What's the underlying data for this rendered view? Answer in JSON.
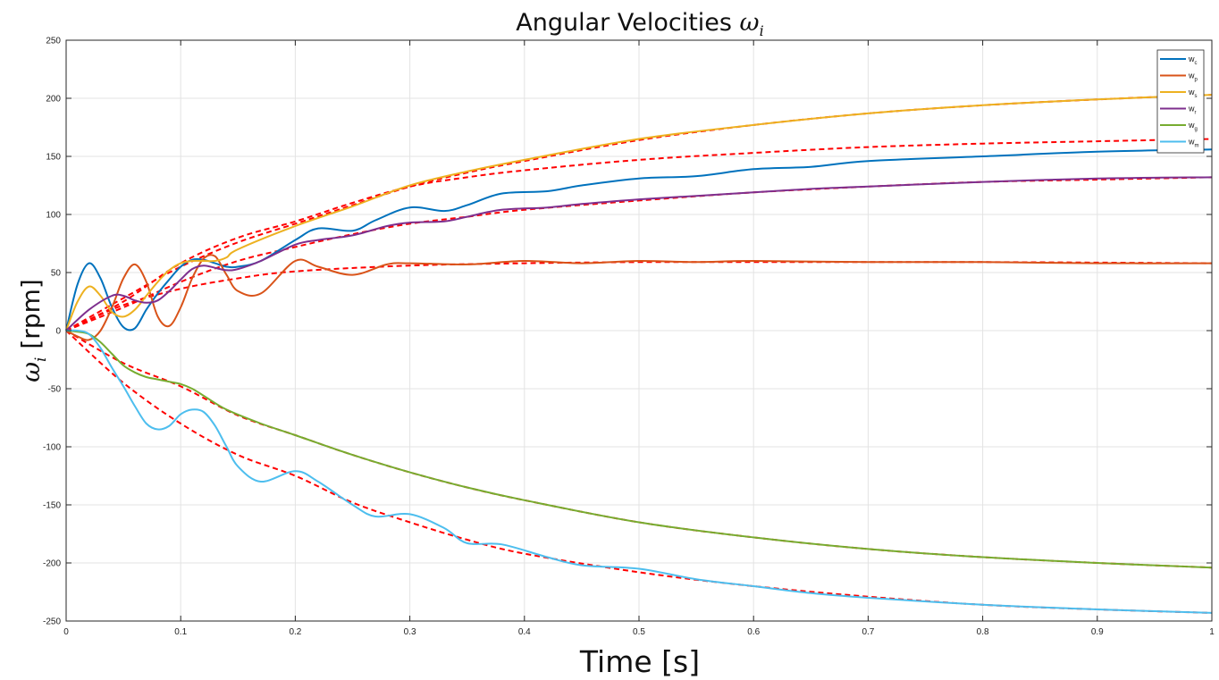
{
  "chart_data": {
    "type": "line",
    "title": "Angular Velocities ",
    "title_symbol": "ω",
    "title_subscript": "i",
    "xlabel": "Time [s]",
    "ylabel_symbol": "ω",
    "ylabel_subscript": "i",
    "ylabel_unit": " [rpm]",
    "xlim": [
      0,
      1
    ],
    "ylim": [
      -250,
      250
    ],
    "xticks": [
      0,
      0.1,
      0.2,
      0.3,
      0.4,
      0.5,
      0.6,
      0.7,
      0.8,
      0.9,
      1
    ],
    "xtick_labels": [
      "0",
      "0.1",
      "0.2",
      "0.3",
      "0.4",
      "0.5",
      "0.6",
      "0.7",
      "0.8",
      "0.9",
      "1"
    ],
    "yticks": [
      -250,
      -200,
      -150,
      -100,
      -50,
      0,
      50,
      100,
      150,
      200,
      250
    ],
    "ytick_labels": [
      "-250",
      "-200",
      "-150",
      "-100",
      "-50",
      "0",
      "50",
      "100",
      "150",
      "200",
      "250"
    ],
    "grid": true,
    "legend_position": "top-right",
    "reference_style": {
      "color": "#ff0000",
      "dash": "dashed"
    },
    "series": [
      {
        "name": "w",
        "sub": "c",
        "color": "#0072BD",
        "x": [
          0,
          0.01,
          0.02,
          0.03,
          0.04,
          0.05,
          0.06,
          0.07,
          0.08,
          0.09,
          0.1,
          0.11,
          0.12,
          0.13,
          0.14,
          0.15,
          0.17,
          0.2,
          0.22,
          0.25,
          0.27,
          0.3,
          0.33,
          0.35,
          0.38,
          0.42,
          0.45,
          0.5,
          0.55,
          0.6,
          0.65,
          0.7,
          0.8,
          0.9,
          1.0
        ],
        "values": [
          0,
          40,
          58,
          45,
          20,
          3,
          2,
          18,
          32,
          44,
          55,
          61,
          61,
          58,
          55,
          55,
          60,
          78,
          88,
          86,
          95,
          106,
          103,
          108,
          118,
          120,
          125,
          131,
          133,
          139,
          141,
          146,
          150,
          154,
          156
        ]
      },
      {
        "name": "w",
        "sub": "p",
        "color": "#D95319",
        "x": [
          0,
          0.01,
          0.02,
          0.03,
          0.04,
          0.05,
          0.06,
          0.07,
          0.08,
          0.09,
          0.1,
          0.11,
          0.12,
          0.13,
          0.14,
          0.15,
          0.17,
          0.2,
          0.22,
          0.25,
          0.28,
          0.3,
          0.35,
          0.4,
          0.45,
          0.5,
          0.55,
          0.6,
          0.7,
          0.8,
          0.9,
          1.0
        ],
        "values": [
          0,
          -5,
          -8,
          0,
          20,
          45,
          57,
          42,
          12,
          4,
          20,
          45,
          62,
          64,
          48,
          34,
          32,
          60,
          55,
          48,
          57,
          58,
          57,
          60,
          58,
          60,
          59,
          60,
          59,
          59,
          58,
          58
        ]
      },
      {
        "name": "w",
        "sub": "s",
        "color": "#EDB120",
        "x": [
          0,
          0.01,
          0.02,
          0.03,
          0.04,
          0.05,
          0.06,
          0.07,
          0.08,
          0.09,
          0.1,
          0.11,
          0.12,
          0.13,
          0.14,
          0.15,
          0.2,
          0.25,
          0.3,
          0.35,
          0.4,
          0.5,
          0.6,
          0.7,
          0.8,
          0.9,
          1.0
        ],
        "values": [
          0,
          25,
          38,
          30,
          16,
          12,
          18,
          30,
          42,
          52,
          58,
          60,
          60,
          60,
          63,
          70,
          90,
          107,
          125,
          137,
          147,
          165,
          177,
          187,
          194,
          199,
          203
        ]
      },
      {
        "name": "w",
        "sub": "r",
        "color": "#7E2F8E",
        "x": [
          0,
          0.02,
          0.04,
          0.05,
          0.06,
          0.07,
          0.08,
          0.09,
          0.1,
          0.11,
          0.12,
          0.13,
          0.14,
          0.15,
          0.17,
          0.2,
          0.22,
          0.25,
          0.28,
          0.3,
          0.33,
          0.35,
          0.38,
          0.42,
          0.45,
          0.5,
          0.55,
          0.6,
          0.65,
          0.7,
          0.8,
          0.9,
          1.0
        ],
        "values": [
          0,
          18,
          30,
          30,
          26,
          24,
          26,
          34,
          44,
          53,
          56,
          54,
          52,
          53,
          60,
          74,
          78,
          82,
          90,
          93,
          94,
          98,
          104,
          106,
          109,
          113,
          116,
          119,
          122,
          124,
          128,
          131,
          132
        ]
      },
      {
        "name": "w",
        "sub": "g",
        "color": "#77AC30",
        "x": [
          0,
          0.01,
          0.02,
          0.03,
          0.04,
          0.05,
          0.06,
          0.07,
          0.08,
          0.09,
          0.1,
          0.11,
          0.12,
          0.14,
          0.17,
          0.2,
          0.25,
          0.3,
          0.35,
          0.4,
          0.5,
          0.6,
          0.7,
          0.8,
          0.9,
          1.0
        ],
        "values": [
          0,
          -1,
          -3,
          -10,
          -20,
          -30,
          -36,
          -40,
          -42,
          -44,
          -46,
          -50,
          -56,
          -68,
          -80,
          -90,
          -107,
          -122,
          -135,
          -146,
          -165,
          -178,
          -188,
          -195,
          -200,
          -204
        ]
      },
      {
        "name": "w",
        "sub": "m",
        "color": "#4DBEEE",
        "x": [
          0,
          0.01,
          0.02,
          0.03,
          0.04,
          0.05,
          0.06,
          0.07,
          0.08,
          0.09,
          0.1,
          0.11,
          0.12,
          0.13,
          0.14,
          0.15,
          0.17,
          0.2,
          0.22,
          0.25,
          0.27,
          0.3,
          0.33,
          0.35,
          0.38,
          0.42,
          0.45,
          0.5,
          0.55,
          0.6,
          0.65,
          0.7,
          0.8,
          0.9,
          1.0
        ],
        "values": [
          0,
          0,
          -3,
          -15,
          -32,
          -48,
          -65,
          -80,
          -85,
          -82,
          -72,
          -68,
          -70,
          -82,
          -100,
          -117,
          -130,
          -121,
          -130,
          -150,
          -160,
          -158,
          -170,
          -183,
          -184,
          -195,
          -202,
          -205,
          -214,
          -220,
          -226,
          -230,
          -236,
          -240,
          -243
        ]
      }
    ],
    "references": [
      {
        "x": [
          0,
          0.05,
          0.1,
          0.15,
          0.2,
          0.25,
          0.3,
          0.35,
          0.4,
          0.5,
          0.6,
          0.7,
          0.8,
          0.9,
          1.0
        ],
        "values": [
          0,
          25,
          58,
          80,
          94,
          110,
          124,
          132,
          138,
          147,
          153,
          158,
          161,
          163,
          165
        ]
      },
      {
        "x": [
          0,
          0.05,
          0.1,
          0.15,
          0.2,
          0.3,
          0.4,
          0.5,
          0.6,
          0.8,
          1.0
        ],
        "values": [
          0,
          22,
          36,
          45,
          51,
          56,
          58,
          59,
          59,
          59,
          58
        ]
      },
      {
        "x": [
          0,
          0.05,
          0.1,
          0.15,
          0.2,
          0.25,
          0.3,
          0.35,
          0.4,
          0.5,
          0.6,
          0.7,
          0.8,
          0.9,
          1.0
        ],
        "values": [
          0,
          28,
          55,
          76,
          92,
          108,
          124,
          136,
          146,
          164,
          177,
          187,
          194,
          199,
          203
        ]
      },
      {
        "x": [
          0,
          0.05,
          0.1,
          0.15,
          0.2,
          0.25,
          0.3,
          0.35,
          0.4,
          0.5,
          0.6,
          0.7,
          0.8,
          0.9,
          1.0
        ],
        "values": [
          0,
          20,
          42,
          60,
          72,
          83,
          92,
          98,
          104,
          112,
          119,
          124,
          128,
          130,
          132
        ]
      },
      {
        "x": [
          0,
          0.05,
          0.1,
          0.15,
          0.2,
          0.25,
          0.3,
          0.35,
          0.4,
          0.5,
          0.6,
          0.7,
          0.8,
          0.9,
          1.0
        ],
        "values": [
          0,
          -28,
          -48,
          -73,
          -90,
          -107,
          -122,
          -135,
          -146,
          -165,
          -178,
          -188,
          -195,
          -200,
          -204
        ]
      },
      {
        "x": [
          0,
          0.05,
          0.1,
          0.15,
          0.2,
          0.25,
          0.3,
          0.35,
          0.4,
          0.5,
          0.6,
          0.7,
          0.8,
          0.9,
          1.0
        ],
        "values": [
          0,
          -45,
          -80,
          -107,
          -125,
          -148,
          -165,
          -180,
          -192,
          -208,
          -220,
          -229,
          -236,
          -240,
          -243
        ]
      }
    ]
  }
}
